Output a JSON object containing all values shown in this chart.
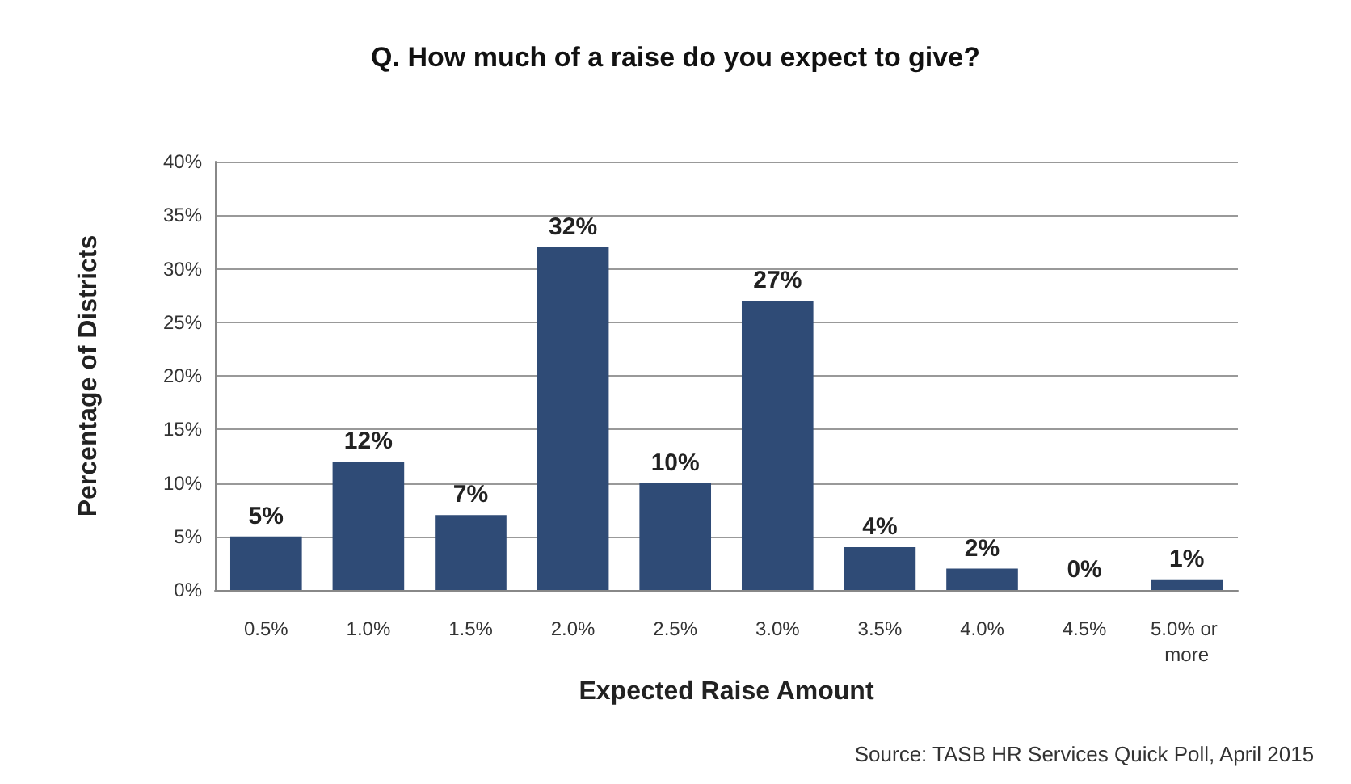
{
  "chart_data": {
    "type": "bar",
    "title": "Q. How much of a raise do you expect to give?",
    "xlabel": "Expected Raise Amount",
    "ylabel": "Percentage of Districts",
    "categories": [
      "0.5%",
      "1.0%",
      "1.5%",
      "2.0%",
      "2.5%",
      "3.0%",
      "3.5%",
      "4.0%",
      "4.5%",
      "5.0% or more"
    ],
    "values": [
      5,
      12,
      7,
      32,
      10,
      27,
      4,
      2,
      0,
      1
    ],
    "value_labels": [
      "5%",
      "12%",
      "7%",
      "32%",
      "10%",
      "27%",
      "4%",
      "2%",
      "0%",
      "1%"
    ],
    "color": "#2f4b76",
    "ylim": [
      0,
      40
    ],
    "yticks": [
      {
        "value": 0,
        "label": "0%"
      },
      {
        "value": 5,
        "label": "5%"
      },
      {
        "value": 10,
        "label": "10%"
      },
      {
        "value": 15,
        "label": "15%"
      },
      {
        "value": 20,
        "label": "20%"
      },
      {
        "value": 25,
        "label": "25%"
      },
      {
        "value": 30,
        "label": "30%"
      },
      {
        "value": 35,
        "label": "35%"
      },
      {
        "value": 40,
        "label": "40%"
      }
    ],
    "grid": "y",
    "annotations": [
      "Source: TASB HR Services Quick Poll, April 2015"
    ]
  }
}
